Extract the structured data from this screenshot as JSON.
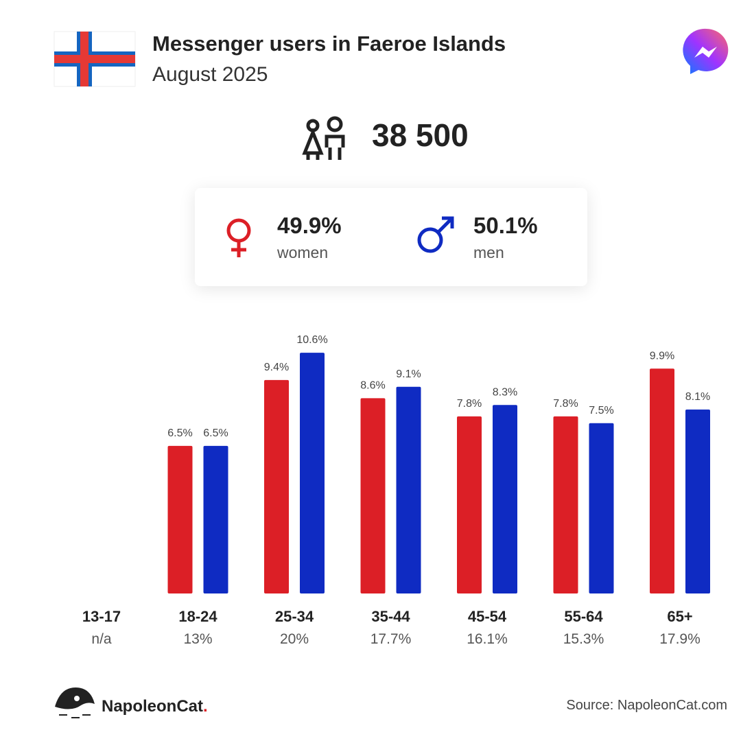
{
  "header": {
    "title": "Messenger users in Faeroe Islands",
    "subtitle": "August 2025"
  },
  "total": "38 500",
  "chart_data": {
    "type": "bar",
    "categories": [
      "13-17",
      "18-24",
      "25-34",
      "35-44",
      "45-54",
      "55-64",
      "65+"
    ],
    "category_shares": [
      "n/a",
      "13%",
      "20%",
      "17.7%",
      "16.1%",
      "15.3%",
      "17.9%"
    ],
    "series": [
      {
        "name": "women",
        "share": "49.9%",
        "color": "#dc1f26",
        "values": [
          null,
          6.5,
          9.4,
          8.6,
          7.8,
          7.8,
          9.9
        ],
        "value_labels": [
          null,
          "6.5%",
          "9.4%",
          "8.6%",
          "7.8%",
          "7.8%",
          "9.9%"
        ]
      },
      {
        "name": "men",
        "share": "50.1%",
        "color": "#0f2bc2",
        "values": [
          null,
          6.5,
          10.6,
          9.1,
          8.3,
          7.5,
          8.1
        ],
        "value_labels": [
          null,
          "6.5%",
          "10.6%",
          "9.1%",
          "8.3%",
          "7.5%",
          "8.1%"
        ]
      }
    ]
  },
  "footer": {
    "brand": "NapoleonCat",
    "brand_dot": ".",
    "source": "Source: NapoleonCat.com"
  }
}
